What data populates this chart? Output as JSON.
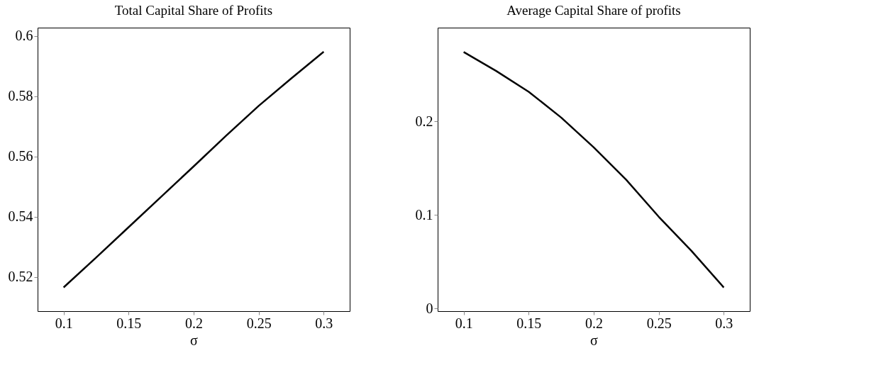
{
  "chart_data": [
    {
      "type": "line",
      "title": "Total Capital Share of Profits",
      "xlabel": "σ",
      "x": [
        0.1,
        0.125,
        0.15,
        0.175,
        0.2,
        0.225,
        0.25,
        0.275,
        0.3
      ],
      "series": [
        {
          "color": "#000000",
          "values": [
            0.5165,
            0.5264,
            0.5365,
            0.5466,
            0.5567,
            0.5669,
            0.5768,
            0.5859,
            0.5948
          ]
        }
      ],
      "xlim": [
        0.08,
        0.32
      ],
      "xticks": [
        0.1,
        0.15,
        0.2,
        0.25,
        0.3
      ],
      "ylim": [
        0.5086,
        0.6028
      ],
      "yticks": [
        0.52,
        0.54,
        0.56,
        0.58,
        0.6
      ],
      "grid": false,
      "legend": false
    },
    {
      "type": "line",
      "title": "Average Capital Share of profits",
      "xlabel": "σ",
      "x": [
        0.1,
        0.125,
        0.15,
        0.175,
        0.2,
        0.225,
        0.25,
        0.275,
        0.3
      ],
      "series": [
        {
          "color": "#000000",
          "values": [
            0.2739,
            0.2537,
            0.2315,
            0.2039,
            0.1721,
            0.1374,
            0.0979,
            0.0617,
            0.0223
          ]
        }
      ],
      "xlim": [
        0.08,
        0.32
      ],
      "xticks": [
        0.1,
        0.15,
        0.2,
        0.25,
        0.3
      ],
      "ylim": [
        -0.003,
        0.3
      ],
      "yticks": [
        0,
        0.1,
        0.2
      ],
      "grid": false,
      "legend": false
    }
  ]
}
